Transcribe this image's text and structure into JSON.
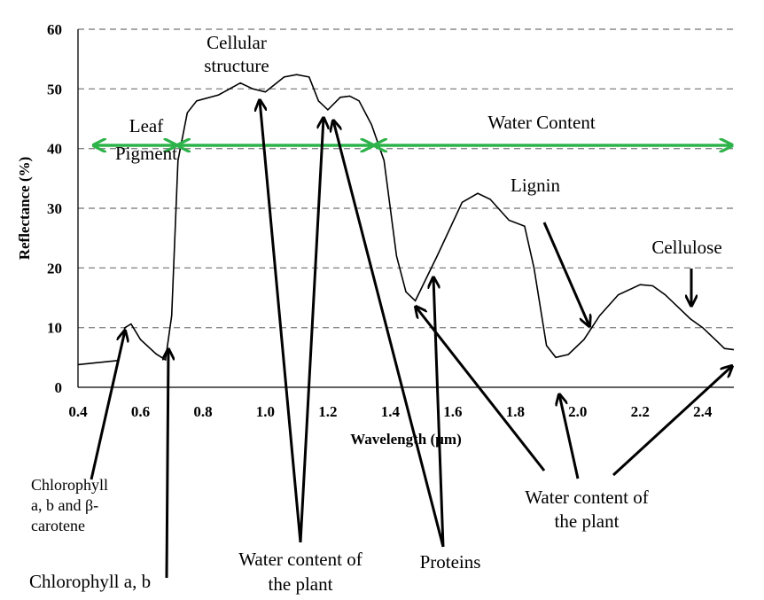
{
  "chart_data": {
    "type": "line",
    "title": "",
    "xlabel": "Wavelength (µm)",
    "ylabel": "Reflectance (%)",
    "xlim": [
      0.4,
      2.5
    ],
    "ylim": [
      0,
      60
    ],
    "xticks": [
      "0.4",
      "0.6",
      "0.8",
      "1.0",
      "1.2",
      "1.4",
      "1.6",
      "1.8",
      "2.0",
      "2.2",
      "2.4"
    ],
    "yticks": [
      "0",
      "10",
      "20",
      "30",
      "40",
      "50",
      "60"
    ],
    "grid": "horizontal dashed",
    "series": [
      {
        "x": [
          0.4,
          0.53,
          0.55,
          0.57,
          0.6,
          0.65,
          0.68,
          0.7,
          0.72,
          0.75,
          0.78,
          0.85,
          0.92,
          0.96,
          1.0,
          1.06,
          1.1,
          1.14,
          1.17,
          1.2,
          1.24,
          1.27,
          1.3,
          1.34,
          1.38,
          1.42,
          1.45,
          1.48,
          1.55,
          1.63,
          1.68,
          1.72,
          1.78,
          1.83,
          1.86,
          1.9,
          1.93,
          1.97,
          2.02,
          2.07,
          2.13,
          2.2,
          2.24,
          2.28,
          2.32,
          2.36,
          2.4,
          2.44,
          2.47,
          2.5
        ],
        "y": [
          3.8,
          4.5,
          10,
          10.6,
          8,
          5.6,
          4.6,
          12,
          38,
          46,
          48,
          49,
          51,
          50,
          49.5,
          52,
          52.4,
          52,
          48,
          46.5,
          48.6,
          48.8,
          48,
          44,
          38,
          22,
          16,
          14.5,
          22,
          31,
          32.5,
          31.5,
          28,
          27,
          20,
          7,
          5,
          5.5,
          8,
          12,
          15.5,
          17.2,
          17,
          15.5,
          13.5,
          11.5,
          10,
          8,
          6.5,
          6.3
        ]
      }
    ],
    "ranges": [
      {
        "label": "Leaf Pigment",
        "from": 0.45,
        "to": 0.72
      },
      {
        "label": "",
        "from": 0.72,
        "to": 1.35
      },
      {
        "label": "Water Content",
        "from": 1.35,
        "to": 2.5
      }
    ],
    "annotations": [
      {
        "key": "cellular",
        "lines": [
          "Cellular",
          "structure"
        ]
      },
      {
        "key": "leaf",
        "lines": [
          "Leaf",
          "Pigment"
        ]
      },
      {
        "key": "water_top",
        "lines": [
          "Water Content"
        ]
      },
      {
        "key": "lignin",
        "lines": [
          "Lignin"
        ]
      },
      {
        "key": "cellulose",
        "lines": [
          "Cellulose"
        ]
      },
      {
        "key": "chl_abc",
        "lines": [
          "Chlorophyll",
          "a,  b  and  β-",
          "carotene"
        ]
      },
      {
        "key": "chl_ab",
        "lines": [
          "Chlorophyll  a, b"
        ]
      },
      {
        "key": "water_plant_1",
        "lines": [
          "Water content of",
          "the plant"
        ]
      },
      {
        "key": "proteins",
        "lines": [
          "Proteins"
        ]
      },
      {
        "key": "water_plant_2",
        "lines": [
          "Water content of",
          "the plant"
        ]
      }
    ]
  }
}
